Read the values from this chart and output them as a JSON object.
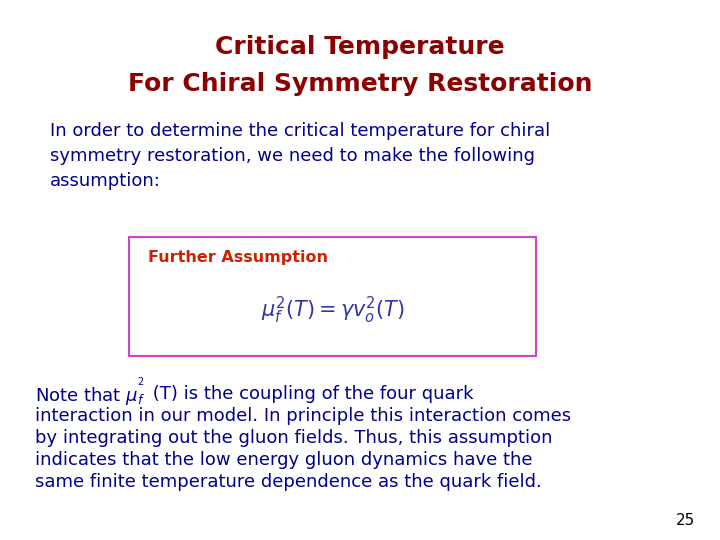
{
  "title_line1": "Critical Temperature",
  "title_line2": "For Chiral Symmetry Restoration",
  "title_color": "#8B0000",
  "title_fontsize": 18,
  "body_color": "#00008B",
  "body_fontsize": 13,
  "intro_text": "In order to determine the critical temperature for chiral\nsymmetry restoration, we need to make the following\nassumption:",
  "box_label": "Further Assumption",
  "box_label_color": "#CC2200",
  "box_formula": "$\\mu_f^2(T) = \\gamma v_o^2(T)$",
  "box_formula_color": "#3333AA",
  "box_border_color": "#CC44CC",
  "page_number": "25",
  "background_color": "#FFFFFF"
}
